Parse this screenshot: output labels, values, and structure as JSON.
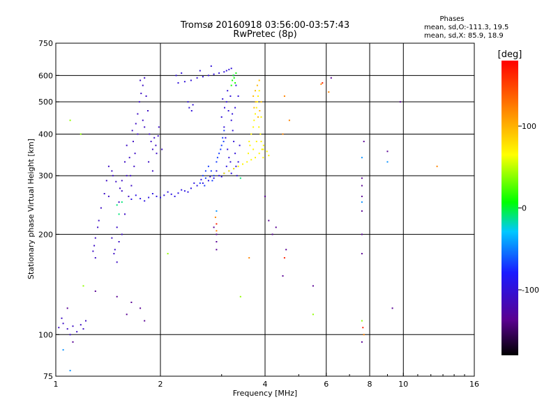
{
  "chart_data": {
    "type": "scatter",
    "title": "Tromsø 20160918 03:56:00-03:57:43",
    "subtitle": "RwPretec (8p)",
    "stats": {
      "heading": "Phases",
      "line1": "mean, sd,O:-111.3, 19.5",
      "line2": "mean, sd,X:  85.9, 18.9"
    },
    "xlabel": "Frequency [MHz]",
    "ylabel": "Stationary phase Virtual Height [km]",
    "x_scale": "log",
    "y_scale": "log",
    "xlim": [
      1,
      16
    ],
    "ylim": [
      75,
      750
    ],
    "x_ticks": [
      1,
      2,
      4,
      6,
      8,
      10,
      16
    ],
    "x_tick_labels": [
      "1",
      "2",
      "4",
      "6",
      "8",
      "10",
      "16"
    ],
    "y_ticks": [
      75,
      100,
      200,
      300,
      400,
      500,
      600,
      750
    ],
    "y_tick_labels": [
      "75",
      "100",
      "200",
      "300",
      "400",
      "500",
      "600",
      "750"
    ],
    "x_grid": [
      2,
      4,
      6,
      8,
      10
    ],
    "y_grid": [
      100,
      200,
      300,
      400,
      500,
      600
    ],
    "grid": true,
    "colorbar": {
      "label": "[deg]",
      "range": [
        -180,
        180
      ],
      "ticks": [
        100,
        0,
        -100
      ],
      "tick_labels": [
        "100",
        "0",
        "-100"
      ]
    },
    "series": [
      {
        "phase": -110,
        "points": [
          [
            1.02,
            105
          ],
          [
            1.05,
            108
          ],
          [
            1.08,
            104
          ],
          [
            1.12,
            106
          ],
          [
            1.15,
            102
          ],
          [
            1.18,
            107
          ],
          [
            1.2,
            104
          ],
          [
            1.22,
            110
          ],
          [
            1.04,
            112
          ],
          [
            1.1,
            100
          ],
          [
            1.28,
            178
          ],
          [
            1.3,
            195
          ],
          [
            1.32,
            210
          ],
          [
            1.29,
            185
          ],
          [
            1.33,
            220
          ],
          [
            1.3,
            170
          ],
          [
            1.35,
            240
          ],
          [
            1.38,
            265
          ],
          [
            1.4,
            290
          ],
          [
            1.42,
            320
          ],
          [
            1.45,
            310
          ],
          [
            1.42,
            260
          ],
          [
            1.45,
            195
          ],
          [
            1.48,
            180
          ],
          [
            1.5,
            210
          ],
          [
            1.52,
            250
          ],
          [
            1.55,
            270
          ],
          [
            1.5,
            165
          ],
          [
            1.47,
            175
          ],
          [
            1.52,
            190
          ],
          [
            1.55,
            200
          ],
          [
            1.58,
            230
          ],
          [
            1.6,
            300
          ],
          [
            1.62,
            260
          ],
          [
            1.65,
            280
          ],
          [
            1.63,
            340
          ],
          [
            1.67,
            380
          ],
          [
            1.66,
            410
          ],
          [
            1.7,
            430
          ],
          [
            1.72,
            460
          ],
          [
            1.69,
            350
          ],
          [
            1.74,
            500
          ],
          [
            1.76,
            530
          ],
          [
            1.78,
            560
          ],
          [
            1.8,
            590
          ],
          [
            1.75,
            580
          ],
          [
            1.82,
            520
          ],
          [
            1.84,
            470
          ],
          [
            1.8,
            420
          ],
          [
            1.86,
            400
          ],
          [
            1.88,
            380
          ],
          [
            1.9,
            360
          ],
          [
            1.92,
            390
          ],
          [
            1.95,
            350
          ],
          [
            1.98,
            420
          ],
          [
            1.85,
            330
          ],
          [
            1.9,
            310
          ],
          [
            1.94,
            370
          ],
          [
            1.97,
            395
          ],
          [
            2.02,
            360
          ],
          [
            1.78,
            440
          ],
          [
            1.72,
            400
          ],
          [
            1.68,
            320
          ],
          [
            1.6,
            370
          ],
          [
            1.58,
            330
          ],
          [
            1.64,
            300
          ],
          [
            1.55,
            290
          ],
          [
            1.53,
            275
          ],
          [
            1.49,
            288
          ],
          [
            1.46,
            300
          ]
        ]
      },
      {
        "phase": -95,
        "points": [
          [
            1.65,
            255
          ],
          [
            1.75,
            256
          ],
          [
            1.85,
            258
          ],
          [
            1.95,
            260
          ],
          [
            2.05,
            262
          ],
          [
            2.15,
            264
          ],
          [
            2.25,
            266
          ],
          [
            2.35,
            270
          ],
          [
            2.45,
            275
          ],
          [
            2.55,
            280
          ],
          [
            2.65,
            285
          ],
          [
            2.75,
            290
          ],
          [
            2.85,
            295
          ],
          [
            2.95,
            300
          ],
          [
            3.05,
            305
          ],
          [
            3.15,
            310
          ],
          [
            3.25,
            315
          ],
          [
            1.7,
            262
          ],
          [
            1.8,
            252
          ],
          [
            1.9,
            265
          ],
          [
            2.0,
            258
          ],
          [
            2.1,
            268
          ],
          [
            2.2,
            260
          ],
          [
            2.3,
            272
          ],
          [
            2.4,
            268
          ],
          [
            2.5,
            285
          ],
          [
            2.62,
            292
          ],
          [
            2.78,
            298
          ],
          [
            2.9,
            310
          ],
          [
            3.0,
            298
          ],
          [
            3.1,
            320
          ],
          [
            3.2,
            305
          ]
        ]
      },
      {
        "phase": -100,
        "points": [
          [
            2.25,
            570
          ],
          [
            2.35,
            575
          ],
          [
            2.45,
            580
          ],
          [
            2.55,
            590
          ],
          [
            2.65,
            595
          ],
          [
            2.75,
            600
          ],
          [
            2.85,
            605
          ],
          [
            2.95,
            610
          ],
          [
            3.05,
            615
          ],
          [
            3.1,
            620
          ],
          [
            3.15,
            625
          ],
          [
            3.2,
            630
          ],
          [
            2.4,
            500
          ],
          [
            2.42,
            480
          ],
          [
            2.46,
            470
          ],
          [
            2.48,
            490
          ],
          [
            3.0,
            450
          ],
          [
            3.05,
            420
          ],
          [
            3.08,
            390
          ],
          [
            3.12,
            360
          ],
          [
            3.15,
            340
          ],
          [
            3.18,
            330
          ],
          [
            3.1,
            500
          ],
          [
            3.14,
            470
          ],
          [
            3.2,
            440
          ],
          [
            3.23,
            410
          ],
          [
            3.25,
            380
          ],
          [
            3.28,
            350
          ],
          [
            3.3,
            320
          ],
          [
            3.32,
            300
          ],
          [
            3.35,
            330
          ],
          [
            3.3,
            560
          ],
          [
            3.35,
            520
          ],
          [
            3.28,
            480
          ],
          [
            3.22,
            460
          ],
          [
            3.18,
            520
          ],
          [
            3.12,
            540
          ],
          [
            3.06,
            480
          ],
          [
            3.02,
            510
          ],
          [
            3.38,
            370
          ],
          [
            3.25,
            600
          ],
          [
            2.22,
            600
          ],
          [
            2.3,
            610
          ],
          [
            2.6,
            620
          ],
          [
            2.8,
            640
          ]
        ]
      },
      {
        "phase": -70,
        "points": [
          [
            2.6,
            285
          ],
          [
            2.7,
            295
          ],
          [
            2.8,
            310
          ],
          [
            2.9,
            330
          ],
          [
            2.95,
            350
          ],
          [
            3.0,
            370
          ],
          [
            3.02,
            390
          ],
          [
            3.05,
            410
          ],
          [
            2.85,
            300
          ],
          [
            2.75,
            320
          ],
          [
            2.65,
            300
          ],
          [
            2.7,
            310
          ],
          [
            2.92,
            340
          ],
          [
            2.98,
            360
          ],
          [
            3.04,
            380
          ],
          [
            2.82,
            290
          ],
          [
            2.68,
            280
          ]
        ]
      },
      {
        "phase": 70,
        "points": [
          [
            3.05,
            305
          ],
          [
            3.15,
            310
          ],
          [
            3.25,
            315
          ],
          [
            3.35,
            320
          ],
          [
            3.45,
            325
          ],
          [
            3.55,
            330
          ],
          [
            3.65,
            335
          ],
          [
            3.75,
            340
          ],
          [
            3.85,
            350
          ],
          [
            3.95,
            360
          ],
          [
            3.6,
            380
          ],
          [
            3.65,
            400
          ],
          [
            3.7,
            420
          ],
          [
            3.72,
            440
          ],
          [
            3.75,
            460
          ],
          [
            3.78,
            480
          ],
          [
            3.8,
            500
          ],
          [
            3.82,
            520
          ],
          [
            3.85,
            540
          ],
          [
            3.88,
            400
          ],
          [
            3.9,
            380
          ],
          [
            3.92,
            360
          ],
          [
            3.95,
            340
          ],
          [
            3.58,
            350
          ],
          [
            3.62,
            370
          ],
          [
            3.7,
            360
          ],
          [
            3.78,
            380
          ],
          [
            3.84,
            420
          ],
          [
            3.9,
            450
          ],
          [
            3.96,
            370
          ],
          [
            4.05,
            355
          ],
          [
            4.1,
            345
          ]
        ]
      },
      {
        "phase": 95,
        "points": [
          [
            3.7,
            520
          ],
          [
            3.75,
            540
          ],
          [
            3.8,
            560
          ],
          [
            3.85,
            580
          ],
          [
            3.72,
            480
          ],
          [
            3.76,
            500
          ],
          [
            3.82,
            450
          ],
          [
            3.86,
            470
          ],
          [
            3.9,
            500
          ]
        ]
      },
      {
        "phase": 10,
        "points": [
          [
            3.2,
            560
          ],
          [
            3.22,
            580
          ],
          [
            3.24,
            600
          ],
          [
            3.26,
            590
          ],
          [
            3.28,
            570
          ],
          [
            3.3,
            610
          ]
        ]
      },
      {
        "phase": -10,
        "points": [
          [
            1.5,
            245
          ],
          [
            1.55,
            250
          ],
          [
            1.52,
            230
          ],
          [
            3.4,
            295
          ]
        ]
      },
      {
        "phase": -45,
        "points": [
          [
            1.1,
            78
          ],
          [
            1.05,
            90
          ],
          [
            2.9,
            235
          ],
          [
            7.6,
            340
          ],
          [
            7.6,
            250
          ],
          [
            9.0,
            330
          ]
        ]
      },
      {
        "phase": -135,
        "points": [
          [
            1.08,
            120
          ],
          [
            1.12,
            95
          ],
          [
            1.3,
            135
          ],
          [
            1.5,
            130
          ],
          [
            1.6,
            115
          ],
          [
            1.65,
            125
          ],
          [
            1.75,
            120
          ],
          [
            1.8,
            110
          ],
          [
            2.9,
            180
          ],
          [
            2.9,
            190
          ],
          [
            2.9,
            200
          ],
          [
            2.85,
            210
          ],
          [
            4.0,
            260
          ],
          [
            4.1,
            220
          ],
          [
            4.2,
            200
          ],
          [
            4.3,
            210
          ],
          [
            4.5,
            150
          ],
          [
            4.6,
            180
          ],
          [
            5.5,
            140
          ],
          [
            6.2,
            590
          ],
          [
            7.6,
            295
          ],
          [
            7.6,
            280
          ],
          [
            7.6,
            260
          ],
          [
            7.6,
            235
          ],
          [
            7.6,
            200
          ],
          [
            7.6,
            175
          ],
          [
            7.6,
            95
          ],
          [
            7.7,
            380
          ],
          [
            9.0,
            355
          ],
          [
            9.3,
            120
          ],
          [
            9.8,
            500
          ]
        ]
      },
      {
        "phase": 120,
        "points": [
          [
            2.9,
            205
          ],
          [
            2.88,
            225
          ],
          [
            3.6,
            170
          ],
          [
            4.5,
            400
          ],
          [
            4.7,
            440
          ],
          [
            4.55,
            520
          ],
          [
            5.8,
            565
          ],
          [
            6.1,
            535
          ],
          [
            7.7,
            100
          ],
          [
            12.5,
            320
          ]
        ]
      },
      {
        "phase": 40,
        "points": [
          [
            1.2,
            140
          ],
          [
            1.1,
            440
          ],
          [
            1.18,
            400
          ],
          [
            2.1,
            175
          ],
          [
            3.4,
            130
          ],
          [
            5.5,
            115
          ],
          [
            7.6,
            110
          ]
        ]
      },
      {
        "phase": 165,
        "points": [
          [
            2.9,
            215
          ],
          [
            4.55,
            170
          ],
          [
            5.85,
            570
          ],
          [
            7.65,
            105
          ]
        ]
      }
    ]
  }
}
